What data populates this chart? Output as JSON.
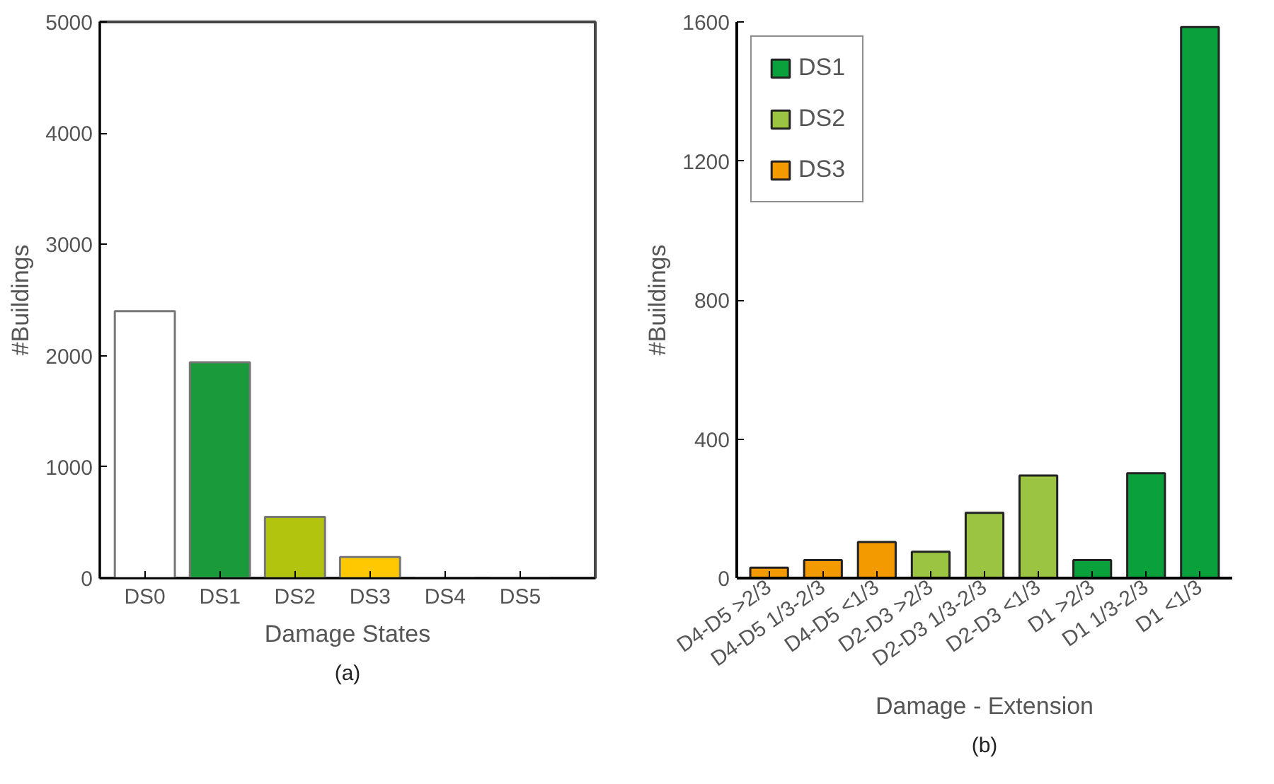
{
  "chart_data": [
    {
      "type": "bar",
      "categories": [
        "DS0",
        "DS1",
        "DS2",
        "DS3",
        "DS4",
        "DS5"
      ],
      "values": [
        2400,
        1940,
        550,
        190,
        0,
        0
      ],
      "colors": [
        "#ffffff",
        "#1a9a3a",
        "#b2c40e",
        "#ffc800",
        "#ffffff",
        "#ffffff"
      ],
      "xlabel": "Damage States",
      "ylabel": "#Buildings",
      "ylim": [
        0,
        5000
      ],
      "yticks": [
        0,
        1000,
        2000,
        3000,
        4000,
        5000
      ],
      "grid": false,
      "legend": false,
      "annotations": [
        "(a)"
      ]
    },
    {
      "type": "bar",
      "categories": [
        "D4-D5 >2/3",
        "D4-D5 1/3-2/3",
        "D4-D5 <1/3",
        "D2-D3 >2/3",
        "D2-D3 1/3-2/3",
        "D2-D3 <1/3",
        "D1 >2/3",
        "D1 1/3-2/3",
        "D1 <1/3"
      ],
      "series": [
        {
          "name": "DS1",
          "color": "#0aa03c",
          "values": [
            null,
            null,
            null,
            null,
            null,
            null,
            52,
            302,
            1585
          ]
        },
        {
          "name": "DS2",
          "color": "#9bc443",
          "values": [
            null,
            null,
            null,
            76,
            188,
            295,
            null,
            null,
            null
          ]
        },
        {
          "name": "DS3",
          "color": "#f39a00",
          "values": [
            30,
            52,
            104,
            null,
            null,
            null,
            null,
            null,
            null
          ]
        }
      ],
      "xlabel": "Damage - Extension",
      "ylabel": "#Buildings",
      "ylim": [
        0,
        1600
      ],
      "yticks": [
        0,
        400,
        800,
        1200,
        1600
      ],
      "grid": false,
      "legend": "top left",
      "annotations": [
        "(b)"
      ]
    }
  ]
}
